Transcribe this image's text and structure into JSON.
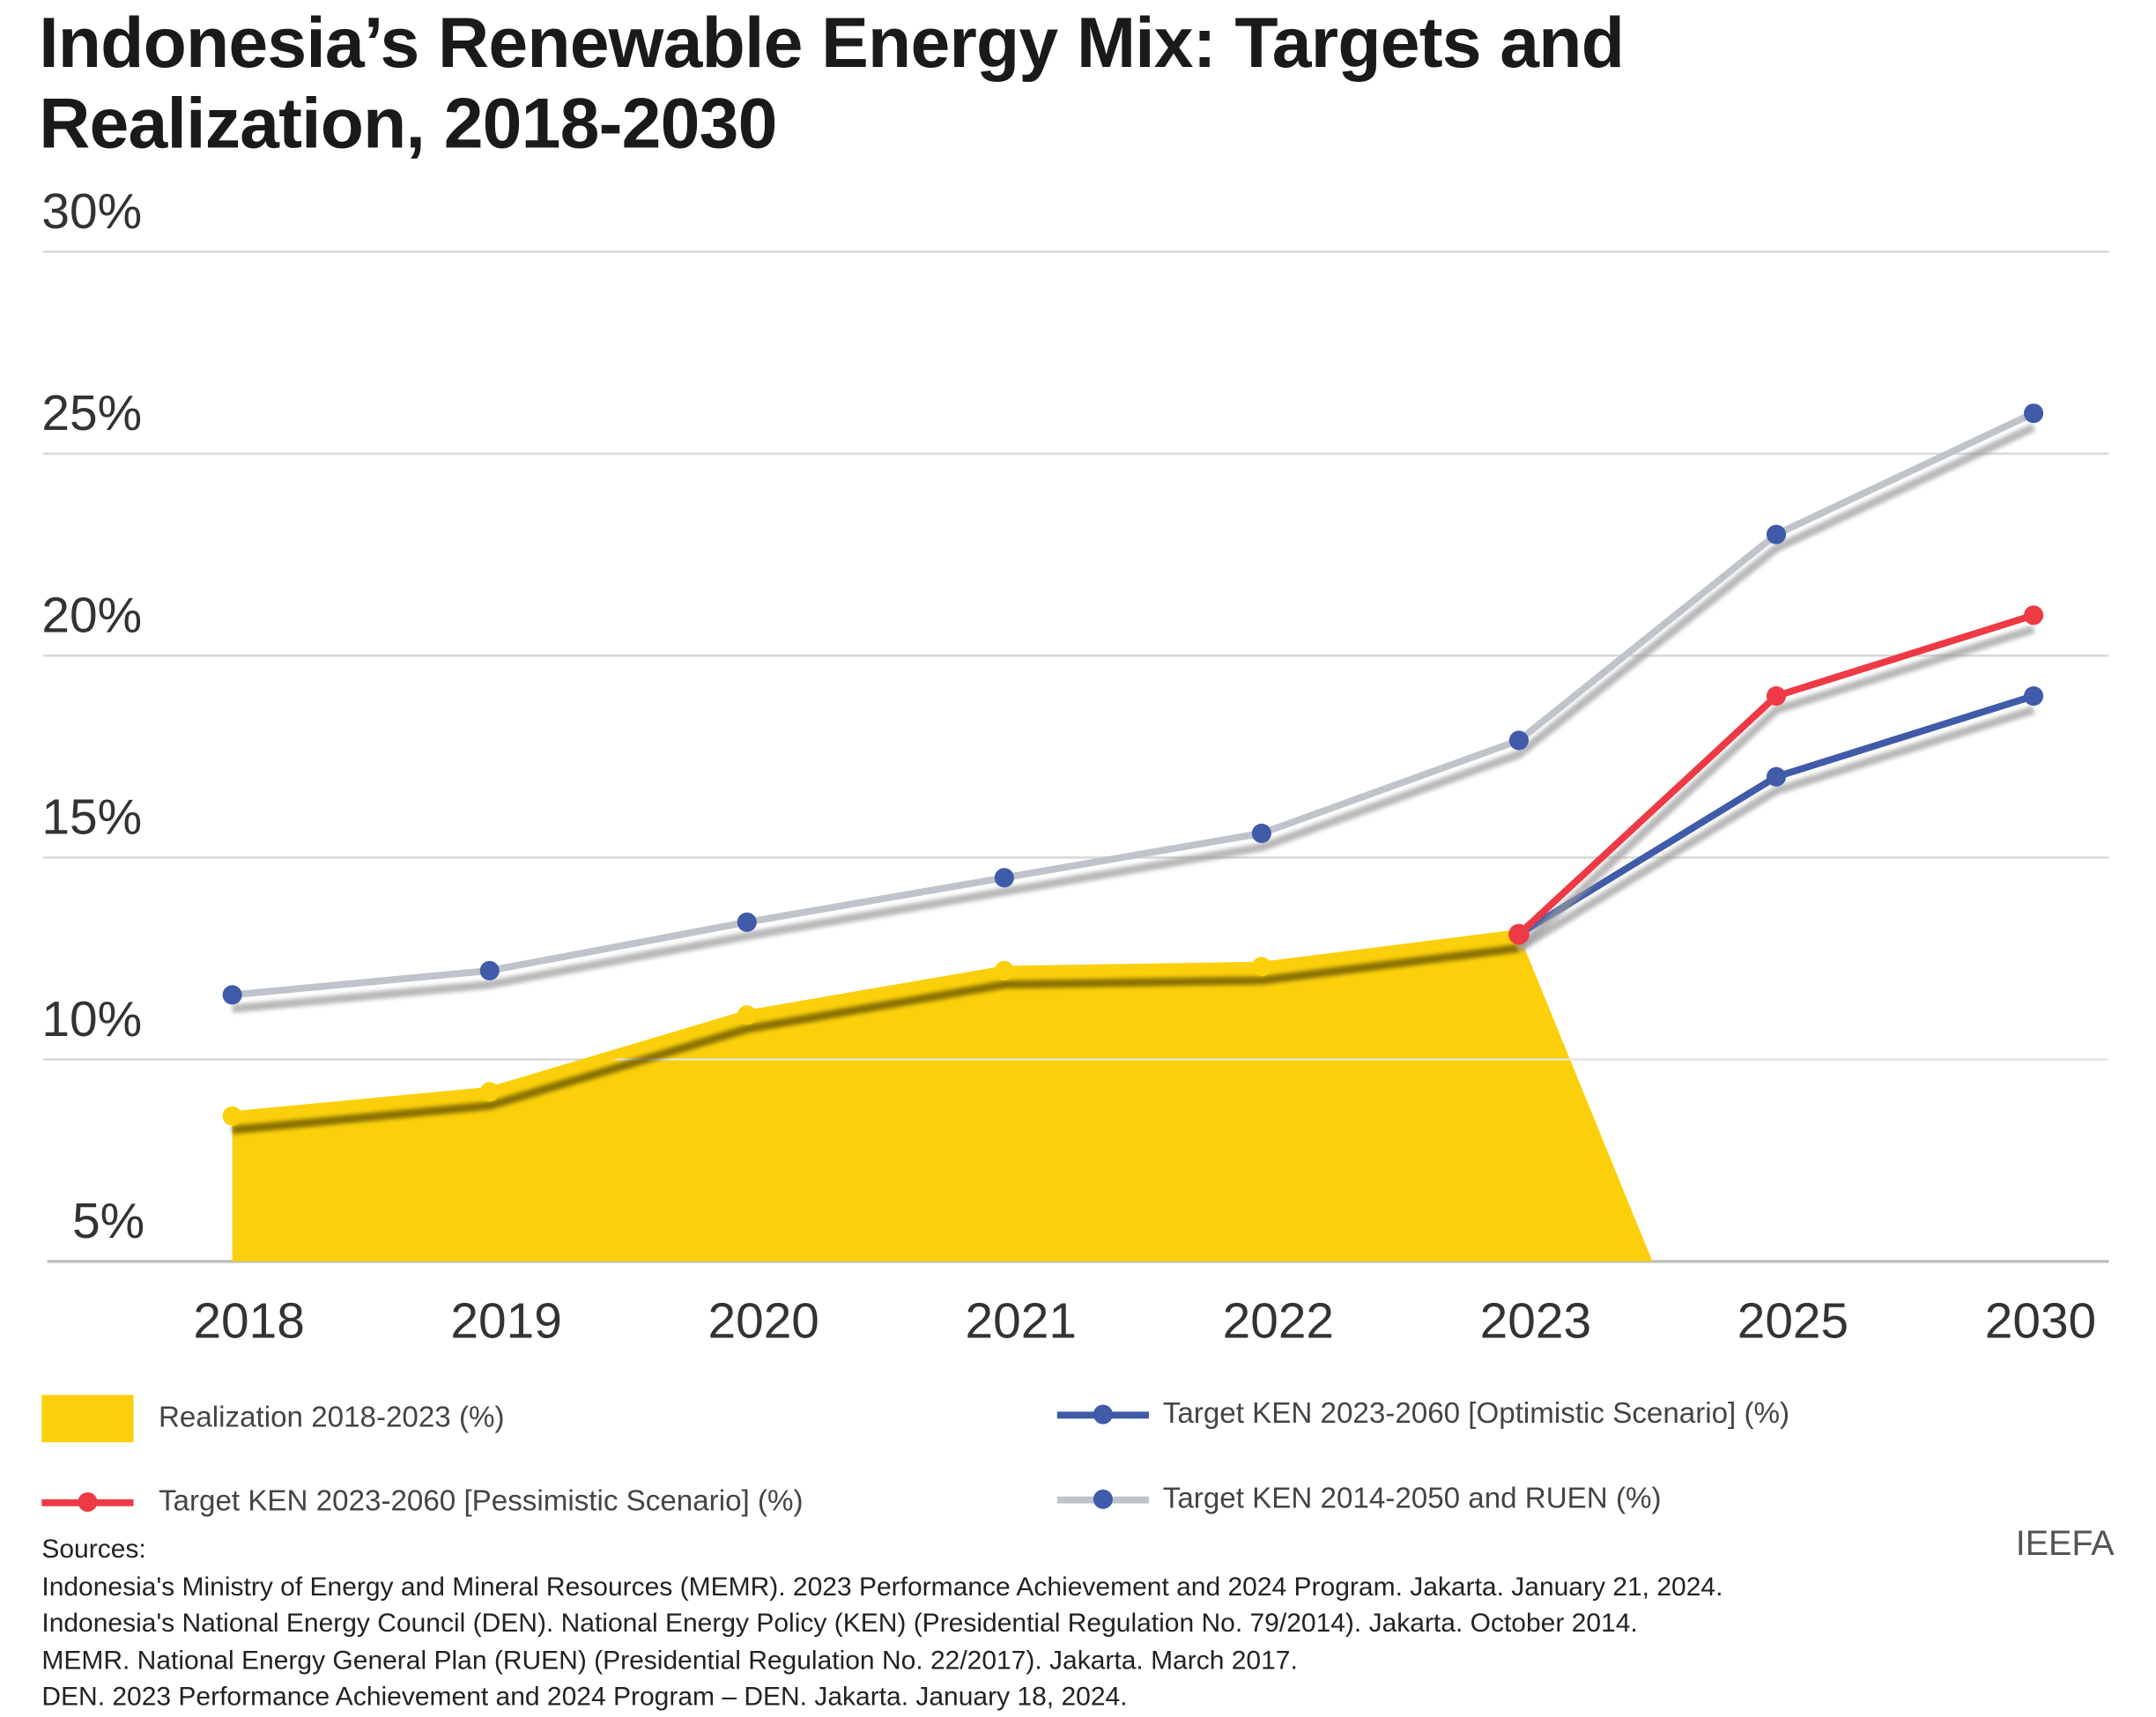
{
  "chart_data": {
    "type": "line",
    "title": "Indonesia’s Renewable Energy Mix: Targets and Realization, 2018-2030",
    "categories": [
      "2018",
      "2019",
      "2020",
      "2021",
      "2022",
      "2023",
      "2025",
      "2030"
    ],
    "ylim": [
      5,
      30
    ],
    "yticks": [
      "5%",
      "10%",
      "15%",
      "20%",
      "25%",
      "30%"
    ],
    "grid": true,
    "legend_position": "bottom",
    "series": [
      {
        "name": "Realization 2018-2023 (%)",
        "kind": "area",
        "color": "#FBD00B",
        "values": [
          8.6,
          9.2,
          11.1,
          12.2,
          12.3,
          13.1,
          null,
          null
        ]
      },
      {
        "name": "Target KEN 2023-2060 [Optimistic Scenario] (%)",
        "kind": "line",
        "color": "#3F5BA9",
        "marker": "#3F5BA9",
        "values": [
          null,
          null,
          null,
          null,
          null,
          13.1,
          17.0,
          19.0
        ]
      },
      {
        "name": "Target KEN 2023-2060 [Pessimistic Scenario] (%)",
        "kind": "line",
        "color": "#EE3A45",
        "marker": "#EE3A45",
        "values": [
          null,
          null,
          null,
          null,
          null,
          13.1,
          19.0,
          21.0
        ]
      },
      {
        "name": "Target KEN 2014-2050 and RUEN (%)",
        "kind": "line",
        "color": "#BFC4CB",
        "marker": "#3F5BA9",
        "values": [
          11.6,
          12.2,
          13.4,
          14.5,
          15.6,
          17.9,
          23.0,
          26.0
        ]
      }
    ]
  },
  "sources": {
    "heading": "Sources:",
    "lines": [
      "Indonesia's Ministry of Energy and Mineral Resources (MEMR). 2023 Performance Achievement and 2024 Program. Jakarta. January 21, 2024.",
      "Indonesia's National Energy Council (DEN). National Energy Policy (KEN) (Presidential Regulation No. 79/2014). Jakarta. October 2014.",
      "MEMR. National Energy General Plan (RUEN) (Presidential Regulation No. 22/2017). Jakarta. March 2017.",
      "DEN. 2023 Performance Achievement and 2024 Program – DEN. Jakarta. January 18, 2024."
    ]
  },
  "brand": "IEEFA"
}
